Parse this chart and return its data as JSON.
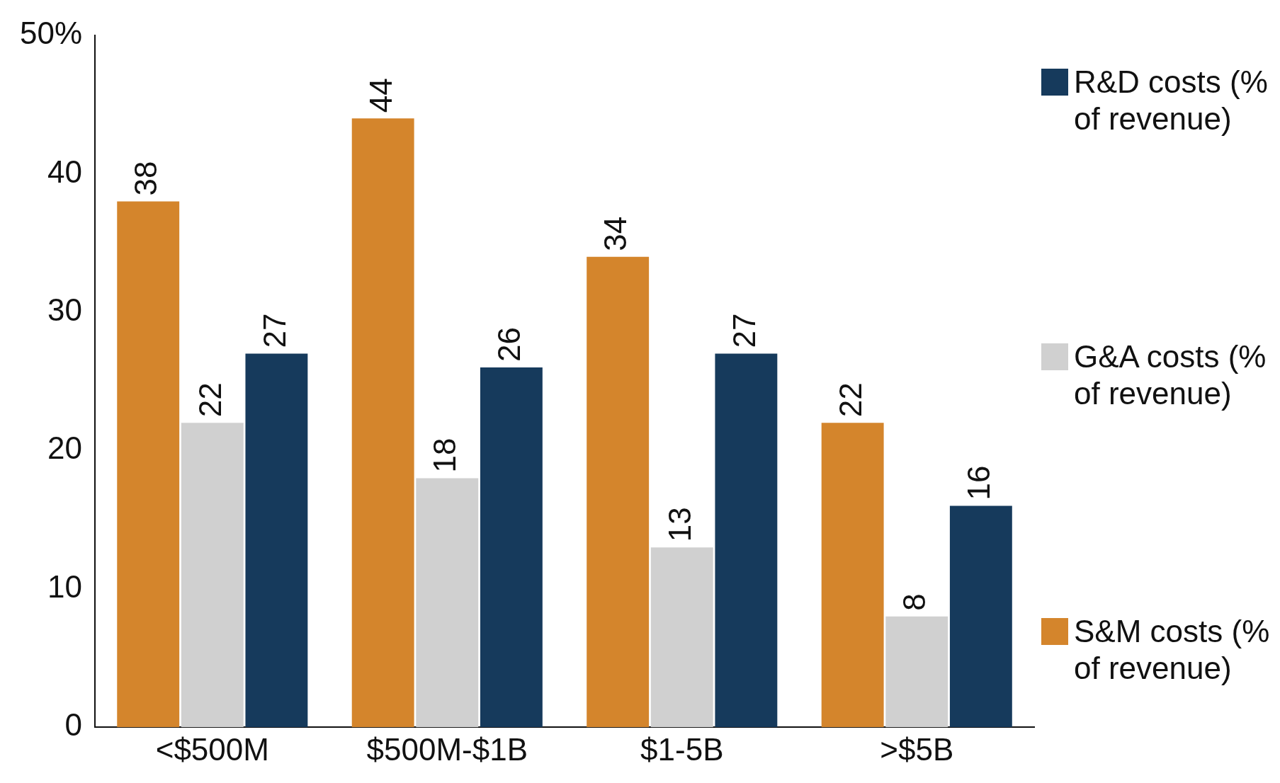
{
  "chart_data": {
    "type": "bar",
    "categories": [
      "<$500M",
      "$500M-$1B",
      "$1-5B",
      ">$5B"
    ],
    "series": [
      {
        "name": "S&M costs (% of revenue)",
        "color": "#d4852c",
        "values": [
          38,
          44,
          34,
          22
        ]
      },
      {
        "name": "G&A costs (% of revenue)",
        "color": "#d0d0d0",
        "values": [
          22,
          18,
          13,
          8
        ]
      },
      {
        "name": "R&D costs (% of revenue)",
        "color": "#163a5c",
        "values": [
          27,
          26,
          27,
          16
        ]
      }
    ],
    "ylim": [
      0,
      50
    ],
    "yticks": [
      0,
      10,
      20,
      30,
      40,
      {
        "value": 50,
        "label": "50%"
      }
    ],
    "grid": false,
    "legend": "right",
    "data_labels": true
  }
}
